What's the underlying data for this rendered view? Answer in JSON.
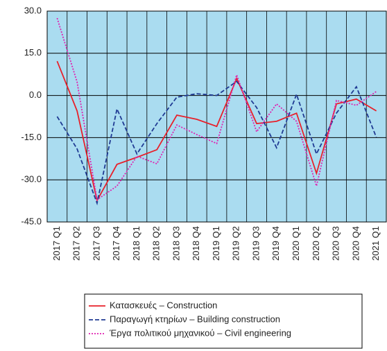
{
  "chart_data": {
    "type": "line",
    "categories": [
      "2017 Q1",
      "2017 Q2",
      "2017 Q3",
      "2017 Q4",
      "2018 Q1",
      "2018 Q2",
      "2018 Q3",
      "2018 Q4",
      "2019 Q1",
      "2019 Q2",
      "2019 Q3",
      "2019 Q4",
      "2020 Q1",
      "2020 Q2",
      "2020 Q3",
      "2020 Q4",
      "2021 Q1"
    ],
    "series": [
      {
        "name": "Κατασκευές – Construction",
        "color": "#e8202a",
        "style": "solid",
        "values": [
          12.2,
          -5.5,
          -37.4,
          -24.5,
          -22,
          -19.3,
          -7,
          -8.5,
          -11,
          6,
          -10,
          -9.2,
          -6.3,
          -27.7,
          -3,
          -1.3,
          -5.5
        ]
      },
      {
        "name": "Παραγωγή κτηρίων – Building construction",
        "color": "#1f3a93",
        "style": "dashed",
        "values": [
          -7.5,
          -19,
          -38.3,
          -4.8,
          -20.8,
          -10,
          -0.6,
          0.6,
          0,
          5,
          -4.3,
          -18.6,
          0.4,
          -20.8,
          -6.3,
          3.1,
          -14.9
        ]
      },
      {
        "name": "Έργα πολιτικού μηχανικού – Civil engineering",
        "color": "#e020b0",
        "style": "dotted",
        "values": [
          27.5,
          4.8,
          -37.1,
          -32.2,
          -21.6,
          -24.3,
          -10.5,
          -13.9,
          -17.1,
          7.3,
          -12.9,
          -3,
          -9.2,
          -32.2,
          -1.8,
          -3.5,
          1.4
        ]
      }
    ],
    "ylim": [
      -45,
      30
    ],
    "yticks": [
      {
        "value": -45,
        "label": "-45.0"
      },
      {
        "value": -30,
        "label": "-30.0"
      },
      {
        "value": -15,
        "label": "-15.0"
      },
      {
        "value": 0,
        "label": "0.0"
      },
      {
        "value": 15,
        "label": "15.0"
      },
      {
        "value": 30,
        "label": "30.0"
      }
    ],
    "grid": true,
    "background": "#aadcf0"
  }
}
